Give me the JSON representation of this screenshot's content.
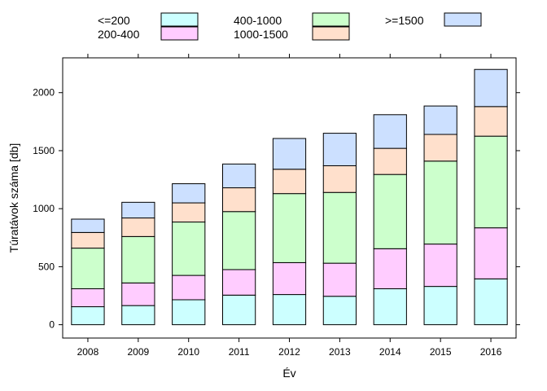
{
  "chart_data": {
    "type": "bar",
    "stacked": true,
    "categories": [
      "2008",
      "2009",
      "2010",
      "2011",
      "2012",
      "2013",
      "2014",
      "2015",
      "2016"
    ],
    "series": [
      {
        "name": "<=200",
        "color": "#ccffff",
        "values": [
          155,
          165,
          215,
          255,
          260,
          245,
          310,
          330,
          395
        ]
      },
      {
        "name": "200-400",
        "color": "#ffccff",
        "values": [
          155,
          195,
          210,
          220,
          275,
          285,
          345,
          365,
          440
        ]
      },
      {
        "name": "400-1000",
        "color": "#ccffcc",
        "values": [
          350,
          400,
          460,
          500,
          595,
          610,
          640,
          715,
          790
        ]
      },
      {
        "name": "1000-1500",
        "color": "#ffe0cc",
        "values": [
          135,
          160,
          165,
          205,
          210,
          230,
          225,
          230,
          255
        ]
      },
      {
        "name": ">=1500",
        "color": "#cce0ff",
        "values": [
          115,
          135,
          165,
          205,
          265,
          280,
          290,
          245,
          320
        ]
      }
    ],
    "xlabel": "Év",
    "ylabel": "Túratávok száma [db]",
    "ylim": [
      -115,
      2300
    ],
    "yticks": [
      0,
      500,
      1000,
      1500,
      2000
    ],
    "legend_position": "top",
    "grid": false
  }
}
